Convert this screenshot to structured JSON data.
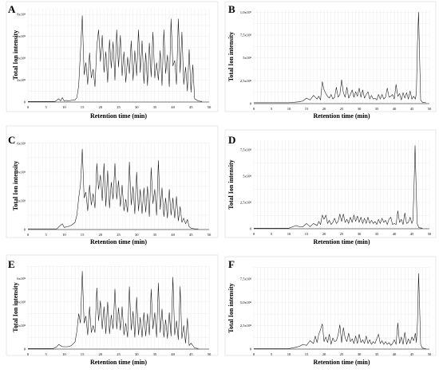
{
  "figure": {
    "panels": [
      {
        "letter": "A",
        "ylabel": "Total Ion intensity",
        "xlabel": "Retention time (min)"
      },
      {
        "letter": "B",
        "ylabel": "Total Ion intensity",
        "xlabel": "Retention time (min)"
      },
      {
        "letter": "C",
        "ylabel": "Total Ion intensity",
        "xlabel": "Retention time (min)"
      },
      {
        "letter": "D",
        "ylabel": "Total Ion intensity",
        "xlabel": "Retention time (min)"
      },
      {
        "letter": "E",
        "ylabel": "Total Ion intensity",
        "xlabel": "Retention time (min)"
      },
      {
        "letter": "F",
        "ylabel": "Total Ion intensity",
        "xlabel": "Retention time (min)"
      }
    ]
  },
  "chart_data": [
    {
      "type": "line",
      "panel": "A",
      "xlabel": "Retention time (min)",
      "ylabel": "Total Ion intensity",
      "xlim": [
        0,
        50
      ],
      "ylim": [
        0,
        8.6
      ],
      "xticks": [
        0,
        5,
        10,
        15,
        20,
        25,
        30,
        35,
        40,
        45,
        50
      ],
      "yticks": [
        0,
        2,
        4,
        6,
        8
      ],
      "ytick_labels": [
        "0",
        "2x10⁸",
        "4x10⁸",
        "6x10⁸",
        "8x10⁸"
      ],
      "grid": true,
      "series": [
        {
          "x": [
            0,
            7.5,
            8.5,
            9,
            9.5,
            10,
            10.5,
            11,
            12,
            13,
            13.5,
            14,
            14.5,
            15,
            15.5,
            16,
            16.5,
            17,
            17.5,
            18,
            18.5,
            19,
            19.5,
            20,
            20.5,
            21,
            21.5,
            22,
            22.5,
            23,
            23.5,
            24,
            24.5,
            25,
            25.5,
            26,
            26.5,
            27,
            27.5,
            28,
            28.5,
            29,
            29.5,
            30,
            30.5,
            31,
            31.5,
            32,
            32.5,
            33,
            33.5,
            34,
            34.5,
            35,
            35.5,
            36,
            36.5,
            37,
            37.5,
            38,
            38.5,
            39,
            39.5,
            40,
            40.5,
            41,
            41.5,
            42,
            42.5,
            43,
            43.5,
            44,
            44.5,
            45,
            45.5,
            46,
            47,
            48
          ],
          "y": [
            0.05,
            0.05,
            0.3,
            0.1,
            0.4,
            0.1,
            0.15,
            0.1,
            0.15,
            0.2,
            0.4,
            1.5,
            4.6,
            7.9,
            2.5,
            3.6,
            1.6,
            4.5,
            2.2,
            3.0,
            1.4,
            5.1,
            6.6,
            3.7,
            6.1,
            2.7,
            4.6,
            1.8,
            5.7,
            3.1,
            5.5,
            2.0,
            6.6,
            3.2,
            6.1,
            2.4,
            4.6,
            1.8,
            4.1,
            2.6,
            5.6,
            2.0,
            4.7,
            2.4,
            6.6,
            2.7,
            5.6,
            1.7,
            4.5,
            1.5,
            5.4,
            2.3,
            6.4,
            2.2,
            3.6,
            2.0,
            4.7,
            1.5,
            6.6,
            2.6,
            4.3,
            1.4,
            7.6,
            3.3,
            3.8,
            1.6,
            7.6,
            2.7,
            6.4,
            1.6,
            3.2,
            1.0,
            4.8,
            0.9,
            3.4,
            0.3,
            0.1,
            0.05
          ]
        }
      ]
    },
    {
      "type": "line",
      "panel": "B",
      "xlabel": "Retention time (min)",
      "ylabel": "Total Ion intensity",
      "xlim": [
        0,
        50
      ],
      "ylim": [
        0,
        10.3
      ],
      "xticks": [
        0,
        5,
        10,
        15,
        20,
        25,
        30,
        35,
        40,
        45,
        50
      ],
      "yticks": [
        0,
        2.5,
        5,
        7.5,
        10
      ],
      "ytick_labels": [
        "0",
        "2,5x10⁸",
        "5x10⁸",
        "7,5x10⁸",
        "1,0x10⁹"
      ],
      "grid": true,
      "series": [
        {
          "x": [
            0,
            10,
            13,
            14,
            15,
            16,
            17,
            18,
            18.5,
            19,
            19.5,
            20,
            20.5,
            21,
            21.5,
            22,
            22.5,
            23,
            23.5,
            24,
            24.5,
            25,
            25.5,
            26,
            26.5,
            27,
            27.5,
            28,
            28.5,
            29,
            29.5,
            30,
            30.5,
            31,
            31.5,
            32,
            32.5,
            33,
            33.5,
            34,
            34.5,
            35,
            35.5,
            36,
            36.5,
            37,
            37.5,
            38,
            38.5,
            39,
            39.5,
            40,
            40.5,
            41,
            41.5,
            42,
            42.5,
            43,
            43.5,
            44,
            44.5,
            45,
            45.5,
            46,
            46.3,
            46.6,
            46.9,
            47.2,
            47.5,
            48,
            49
          ],
          "y": [
            0.1,
            0.1,
            0.2,
            0.3,
            0.6,
            0.4,
            0.9,
            0.5,
            0.8,
            0.4,
            2.4,
            1.5,
            1.1,
            0.8,
            0.6,
            1.0,
            0.5,
            0.7,
            1.8,
            0.7,
            1.0,
            2.6,
            1.2,
            0.7,
            1.8,
            0.6,
            1.0,
            1.5,
            0.7,
            1.3,
            0.8,
            1.7,
            0.7,
            1.5,
            0.6,
            1.0,
            1.3,
            0.5,
            0.9,
            0.5,
            0.6,
            0.4,
            1.0,
            0.5,
            1.0,
            0.5,
            0.7,
            1.7,
            0.7,
            0.8,
            1.0,
            0.5,
            2.1,
            0.8,
            1.1,
            0.4,
            1.2,
            0.6,
            1.2,
            0.5,
            1.4,
            0.5,
            0.8,
            0.5,
            1.2,
            6.6,
            10.0,
            5.2,
            0.4,
            0.15,
            0.1
          ]
        }
      ]
    },
    {
      "type": "line",
      "panel": "C",
      "xlabel": "Retention time (min)",
      "ylabel": "Total Ion intensity",
      "xlim": [
        0,
        50
      ],
      "ylim": [
        0,
        6.1
      ],
      "xticks": [
        0,
        5,
        10,
        15,
        20,
        25,
        30,
        35,
        40,
        45,
        50
      ],
      "yticks": [
        0,
        2,
        4,
        6
      ],
      "ytick_labels": [
        "0",
        "2x10⁸",
        "4x10⁸",
        "6x10⁸"
      ],
      "grid": true,
      "series": [
        {
          "x": [
            0,
            8,
            9,
            9.5,
            10,
            11,
            12,
            13,
            13.5,
            14,
            14.5,
            15,
            15.5,
            16,
            16.5,
            17,
            17.5,
            18,
            18.5,
            19,
            19.5,
            20,
            20.5,
            21,
            21.5,
            22,
            22.5,
            23,
            23.5,
            24,
            24.5,
            25,
            25.5,
            26,
            26.5,
            27,
            27.5,
            28,
            28.5,
            29,
            29.5,
            30,
            30.5,
            31,
            31.5,
            32,
            32.5,
            33,
            33.5,
            34,
            34.5,
            35,
            35.5,
            36,
            36.5,
            37,
            37.5,
            38,
            38.5,
            39,
            39.5,
            40,
            40.5,
            41,
            41.5,
            42,
            42.5,
            43,
            43.5,
            44,
            44.5,
            45,
            46,
            47
          ],
          "y": [
            0.05,
            0.05,
            0.3,
            0.4,
            0.15,
            0.2,
            0.3,
            0.5,
            1.0,
            2.2,
            3.1,
            5.6,
            2.2,
            2.6,
            1.3,
            3.1,
            1.7,
            2.5,
            1.5,
            4.6,
            2.8,
            3.8,
            2.0,
            4.6,
            1.6,
            4.1,
            1.5,
            3.3,
            2.1,
            4.6,
            2.1,
            3.4,
            1.6,
            3.1,
            1.3,
            2.1,
            1.2,
            4.7,
            1.7,
            3.0,
            1.1,
            4.0,
            1.3,
            2.8,
            1.1,
            2.9,
            1.2,
            3.0,
            0.9,
            4.3,
            1.8,
            2.8,
            1.0,
            4.8,
            1.4,
            2.9,
            0.9,
            2.2,
            0.8,
            2.8,
            1.0,
            2.2,
            0.8,
            2.3,
            0.6,
            1.6,
            0.5,
            0.8,
            0.4,
            0.7,
            0.2,
            0.1,
            0.05,
            0.05
          ]
        }
      ]
    },
    {
      "type": "line",
      "panel": "D",
      "xlabel": "Retention time (min)",
      "ylabel": "Total Ion intensity",
      "xlim": [
        0,
        50
      ],
      "ylim": [
        0,
        8.4
      ],
      "xticks": [
        0,
        5,
        10,
        15,
        20,
        25,
        30,
        35,
        40,
        45,
        50
      ],
      "yticks": [
        0,
        2.5,
        5,
        7.5
      ],
      "ytick_labels": [
        "0",
        "2,5x10⁸",
        "5x10⁸",
        "7,5x10⁸"
      ],
      "grid": true,
      "series": [
        {
          "x": [
            0,
            10,
            12,
            13,
            14,
            15,
            16,
            17,
            18,
            18.5,
            19,
            19.5,
            20,
            20.5,
            21,
            21.5,
            22,
            22.5,
            23,
            23.5,
            24,
            24.5,
            25,
            25.5,
            26,
            26.5,
            27,
            27.5,
            28,
            28.5,
            29,
            29.5,
            30,
            30.5,
            31,
            31.5,
            32,
            32.5,
            33,
            33.5,
            34,
            34.5,
            35,
            35.5,
            36,
            36.5,
            37,
            37.5,
            38,
            38.5,
            39,
            39.5,
            40,
            40.5,
            41,
            41.5,
            42,
            42.5,
            43,
            43.5,
            44,
            44.5,
            45,
            45.3,
            45.6,
            45.9,
            46.2,
            46.5,
            47,
            48
          ],
          "y": [
            0.05,
            0.05,
            0.3,
            0.2,
            0.2,
            0.5,
            0.2,
            0.5,
            0.3,
            0.7,
            0.4,
            1.3,
            0.9,
            1.3,
            0.5,
            0.8,
            0.4,
            0.6,
            1.0,
            0.5,
            0.7,
            1.4,
            0.7,
            1.4,
            0.6,
            0.9,
            0.5,
            1.1,
            0.6,
            1.3,
            0.7,
            1.2,
            0.6,
            1.1,
            0.5,
            1.0,
            0.5,
            1.1,
            0.5,
            0.8,
            0.5,
            0.7,
            0.4,
            0.9,
            0.5,
            1.0,
            0.6,
            0.8,
            0.4,
            0.9,
            1.1,
            0.4,
            0.5,
            0.4,
            1.7,
            0.6,
            0.9,
            0.4,
            1.5,
            0.5,
            0.6,
            1.1,
            0.5,
            0.8,
            3.6,
            7.9,
            4.3,
            0.5,
            0.1,
            0.05
          ]
        }
      ]
    },
    {
      "type": "line",
      "panel": "E",
      "xlabel": "Retention time (min)",
      "ylabel": "Total Ion intensity",
      "xlim": [
        0,
        50
      ],
      "ylim": [
        0,
        7.1
      ],
      "xticks": [
        0,
        5,
        10,
        15,
        20,
        25,
        30,
        35,
        40,
        45,
        50
      ],
      "yticks": [
        0,
        2,
        4,
        6
      ],
      "ytick_labels": [
        "0",
        "2x10⁸",
        "4x10⁸",
        "6x10⁸"
      ],
      "grid": true,
      "series": [
        {
          "x": [
            0,
            7,
            8,
            8.5,
            9,
            9.5,
            10,
            11,
            12,
            13,
            13.5,
            14,
            14.5,
            15,
            15.5,
            16,
            16.5,
            17,
            17.5,
            18,
            18.5,
            19,
            19.5,
            20,
            20.5,
            21,
            21.5,
            22,
            22.5,
            23,
            23.5,
            24,
            24.5,
            25,
            25.5,
            26,
            26.5,
            27,
            27.5,
            28,
            28.5,
            29,
            29.5,
            30,
            30.5,
            31,
            31.5,
            32,
            32.5,
            33,
            33.5,
            34,
            34.5,
            35,
            35.5,
            36,
            36.5,
            37,
            37.5,
            38,
            38.5,
            39,
            39.5,
            40,
            40.5,
            41,
            41.5,
            42,
            42.5,
            43,
            43.5,
            44,
            44.5,
            45,
            46,
            47
          ],
          "y": [
            0.05,
            0.05,
            0.2,
            0.4,
            0.3,
            0.2,
            0.2,
            0.2,
            0.3,
            0.6,
            1.5,
            3.0,
            2.2,
            6.6,
            2.2,
            2.8,
            1.2,
            3.6,
            1.4,
            2.0,
            1.4,
            5.2,
            2.4,
            4.1,
            1.7,
            3.6,
            1.3,
            4.0,
            1.3,
            2.9,
            1.7,
            5.1,
            1.7,
            3.5,
            1.6,
            3.6,
            1.2,
            2.2,
            1.0,
            5.3,
            1.6,
            3.2,
            1.0,
            4.4,
            1.2,
            2.7,
            1.0,
            3.1,
            1.1,
            3.0,
            1.2,
            5.1,
            1.7,
            3.1,
            1.0,
            5.6,
            1.4,
            3.4,
            1.0,
            2.5,
            0.9,
            3.1,
            1.1,
            6.1,
            1.2,
            2.4,
            0.8,
            5.3,
            0.9,
            2.0,
            0.5,
            2.6,
            0.3,
            0.5,
            0.1,
            0.05
          ]
        }
      ]
    },
    {
      "type": "line",
      "panel": "F",
      "xlabel": "Retention time (min)",
      "ylabel": "Total Ion intensity",
      "xlim": [
        0,
        50
      ],
      "ylim": [
        0,
        8.8
      ],
      "xticks": [
        0,
        5,
        10,
        15,
        20,
        25,
        30,
        35,
        40,
        45,
        50
      ],
      "yticks": [
        0,
        2.5,
        5,
        7.5
      ],
      "ytick_labels": [
        "0",
        "2,5x10⁸",
        "5,0x10⁸",
        "7,5x10⁸"
      ],
      "grid": true,
      "series": [
        {
          "x": [
            0,
            10,
            12,
            13,
            14,
            15,
            16,
            17,
            17.5,
            18,
            18.5,
            19,
            19.5,
            20,
            20.5,
            21,
            21.5,
            22,
            22.5,
            23,
            23.5,
            24,
            24.5,
            25,
            25.5,
            26,
            26.5,
            27,
            27.5,
            28,
            28.5,
            29,
            29.5,
            30,
            30.5,
            31,
            31.5,
            32,
            32.5,
            33,
            33.5,
            34,
            34.5,
            35,
            35.5,
            36,
            36.5,
            37,
            37.5,
            38,
            38.5,
            39,
            39.5,
            40,
            40.5,
            41,
            41.5,
            42,
            42.5,
            43,
            43.5,
            44,
            44.5,
            45,
            45.5,
            46,
            46.3,
            46.6,
            46.9,
            47.2,
            47.5,
            48,
            49
          ],
          "y": [
            0.05,
            0.05,
            0.2,
            0.3,
            0.5,
            0.4,
            0.9,
            0.6,
            1.4,
            0.7,
            1.6,
            2.1,
            2.7,
            0.8,
            1.3,
            0.7,
            1.6,
            0.5,
            1.2,
            0.8,
            0.9,
            1.5,
            2.6,
            0.7,
            2.3,
            1.2,
            0.8,
            1.7,
            0.8,
            1.1,
            0.6,
            1.4,
            0.6,
            1.6,
            0.7,
            1.0,
            0.6,
            1.4,
            0.6,
            1.0,
            0.5,
            0.8,
            0.6,
            1.1,
            1.6,
            0.6,
            0.9,
            0.5,
            0.8,
            0.5,
            0.7,
            0.4,
            0.6,
            1.0,
            0.5,
            2.8,
            0.6,
            1.3,
            0.5,
            1.8,
            0.5,
            1.1,
            0.6,
            1.3,
            0.9,
            1.7,
            0.7,
            2.8,
            8.1,
            4.7,
            0.5,
            0.1,
            0.05
          ]
        }
      ]
    }
  ]
}
